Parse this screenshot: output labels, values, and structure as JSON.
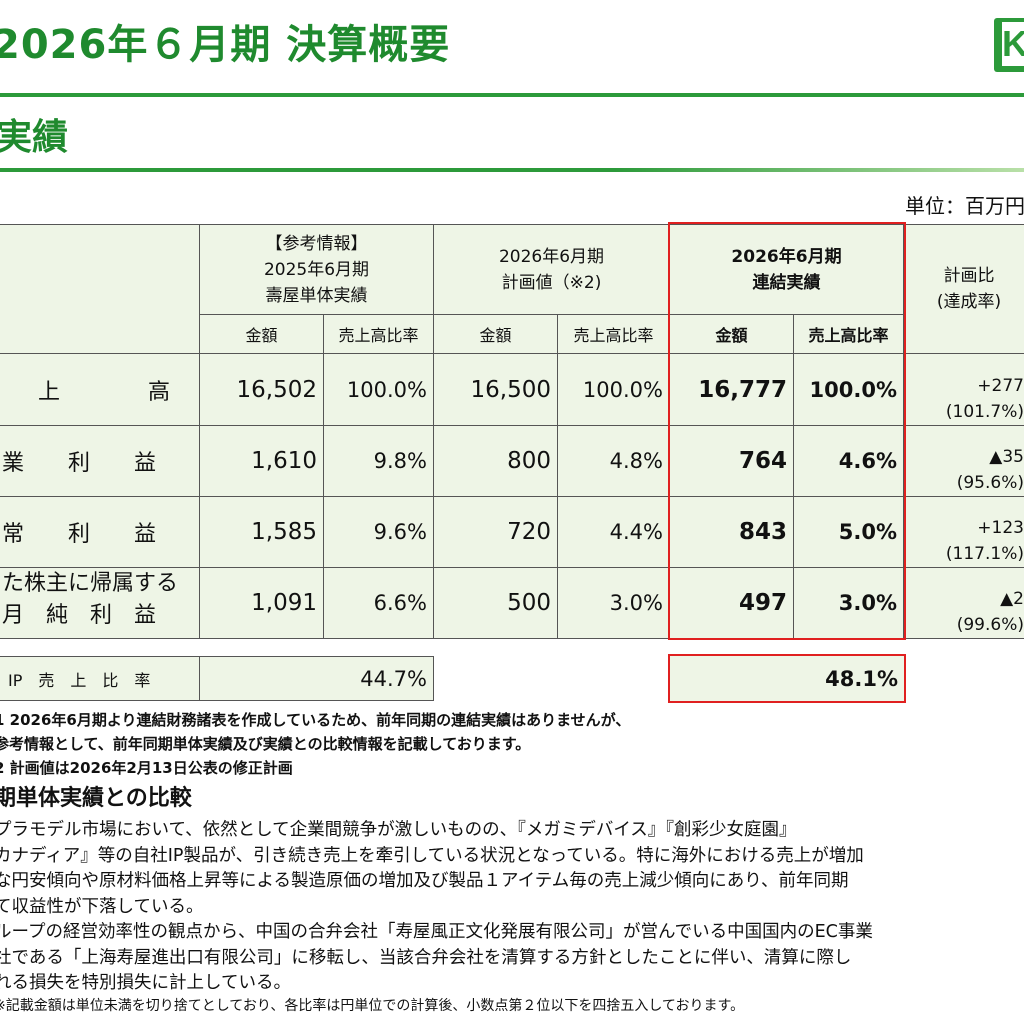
{
  "header": {
    "title": "2026年６月期 決算概要",
    "logo_text": "K",
    "section": "実績",
    "unit": "単位：百万円"
  },
  "table": {
    "col_prev": {
      "lines": [
        "【参考情報】",
        "2025年6月期",
        "壽屋単体実績"
      ]
    },
    "col_plan": {
      "lines": [
        "2026年6月期",
        "計画値（※2)"
      ]
    },
    "col_actual": {
      "lines": [
        "2026年6月期",
        "連結実績"
      ]
    },
    "col_ratio": {
      "lines": [
        "計画比",
        "(達成率)"
      ]
    },
    "sub_amount": "金額",
    "sub_ratio": "売上高比率",
    "rows": [
      {
        "label": "上　　　　高",
        "prev_amt": "16,502",
        "prev_pct": "100.0%",
        "plan_amt": "16,500",
        "plan_pct": "100.0%",
        "act_amt": "16,777",
        "act_pct": "100.0%",
        "cmp1": "+277",
        "cmp2": "(101.7%)"
      },
      {
        "label": "業　　利　　益",
        "prev_amt": "1,610",
        "prev_pct": "9.8%",
        "plan_amt": "800",
        "plan_pct": "4.8%",
        "act_amt": "764",
        "act_pct": "4.6%",
        "cmp1": "▲35",
        "cmp2": "(95.6%)"
      },
      {
        "label": "常　　利　　益",
        "prev_amt": "1,585",
        "prev_pct": "9.6%",
        "plan_amt": "720",
        "plan_pct": "4.4%",
        "act_amt": "843",
        "act_pct": "5.0%",
        "cmp1": "+123",
        "cmp2": "(117.1%)"
      },
      {
        "label": "た株主に帰属する",
        "label2": "月　純　利　益",
        "prev_amt": "1,091",
        "prev_pct": "6.6%",
        "plan_amt": "500",
        "plan_pct": "3.0%",
        "act_amt": "497",
        "act_pct": "3.0%",
        "cmp1": "▲2",
        "cmp2": "(99.6%)"
      }
    ],
    "ip_row": {
      "label": "IP　売　上　比　率",
      "prev": "44.7%",
      "actual": "48.1%"
    }
  },
  "notes": [
    "1  2026年6月期より連結財務諸表を作成しているため、前年同期の連結実績はありませんが、",
    "     参考情報として、前年同期単体実績及び実績との比較情報を記載しております。",
    "2  計画値は2026年2月13日公表の修正計画"
  ],
  "comparison": {
    "heading": "期単体実績との比較",
    "lines": [
      "プラモデル市場において、依然として企業間競争が激しいものの、『メガミデバイス』『創彩少女庭園』",
      "カナディア』等の自社IP製品が、引き続き売上を牽引している状況となっている。特に海外における売上が増加",
      "な円安傾向や原材料価格上昇等による製造原価の増加及び製品１アイテム毎の売上減少傾向にあり、前年同期",
      "て収益性が下落している。",
      "ループの経営効率性の観点から、中国の合弁会社「寿屋風正文化発展有限公司」が営んでいる中国国内のEC事業",
      "社である「上海寿屋進出口有限公司」に移転し、当該合弁会社を清算する方針としたことに伴い、清算に際し",
      "れる損失を特別損失に計上している。"
    ],
    "footnote": "※記載金額は単位未満を切り捨てとしており、各比率は円単位での計算後、小数点第２位以下を四捨五入しております。"
  },
  "colors": {
    "brand_green": "#2c9a3a",
    "highlight_red": "#e02020",
    "cell_bg": "#eef5e6"
  }
}
